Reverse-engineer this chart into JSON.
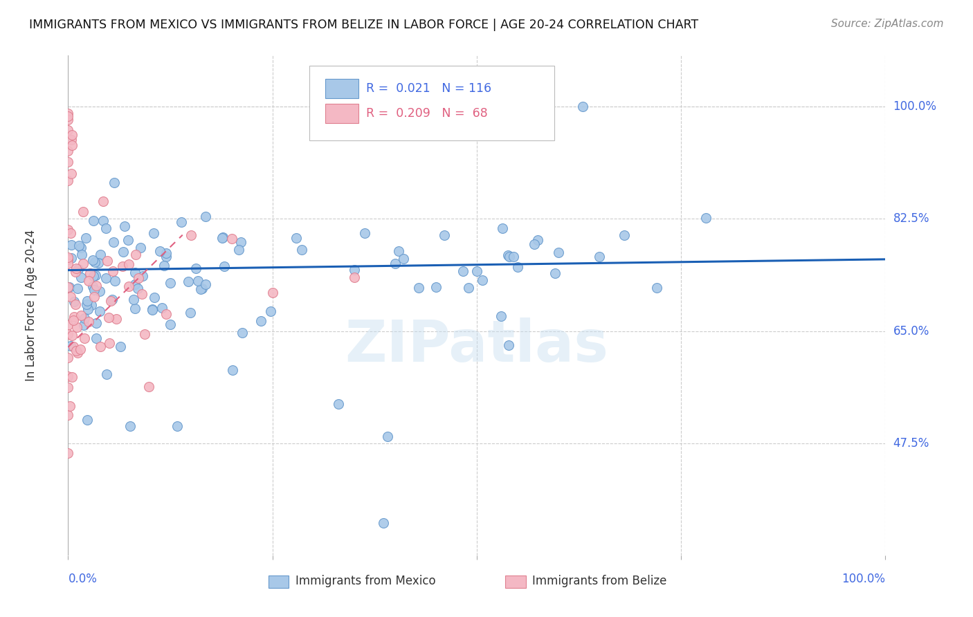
{
  "title": "IMMIGRANTS FROM MEXICO VS IMMIGRANTS FROM BELIZE IN LABOR FORCE | AGE 20-24 CORRELATION CHART",
  "source": "Source: ZipAtlas.com",
  "ylabel": "In Labor Force | Age 20-24",
  "ytick_labels": [
    "100.0%",
    "82.5%",
    "65.0%",
    "47.5%"
  ],
  "ytick_values": [
    1.0,
    0.825,
    0.65,
    0.475
  ],
  "xlim": [
    0.0,
    1.0
  ],
  "ylim": [
    0.3,
    1.08
  ],
  "mexico_color": "#a8c8e8",
  "mexico_edge": "#6699cc",
  "belize_color": "#f4b8c4",
  "belize_edge": "#e08090",
  "trendline_mexico_color": "#1a5fb4",
  "trendline_belize_color": "#e06080",
  "watermark": "ZIPatlas",
  "legend_R_mexico": "0.021",
  "legend_N_mexico": "116",
  "legend_R_belize": "0.209",
  "legend_N_belize": "68",
  "background_color": "#ffffff",
  "grid_color": "#cccccc",
  "axis_color": "#4169E1",
  "text_color": "#333333",
  "title_color": "#111111"
}
